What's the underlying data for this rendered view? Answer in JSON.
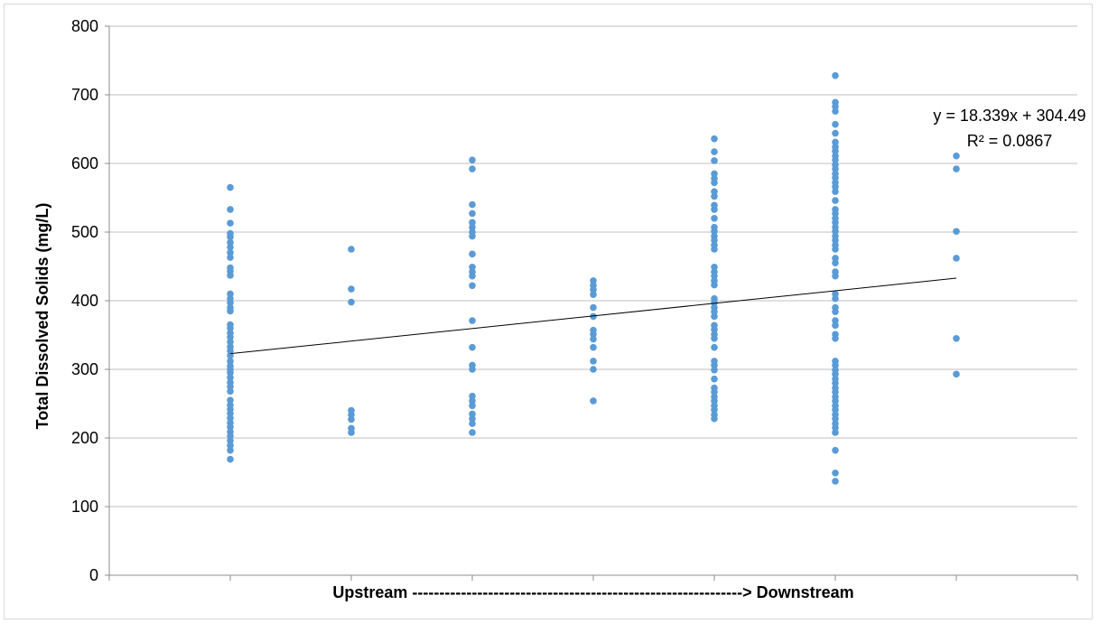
{
  "chart_data": {
    "type": "scatter",
    "title": "",
    "xlabel": "Upstream -------------------------------------------------------------> Downstream",
    "ylabel": "Total Dissolved Solids (mg/L)",
    "xlim": [
      0,
      8
    ],
    "ylim": [
      0,
      800
    ],
    "yticks": [
      0,
      100,
      200,
      300,
      400,
      500,
      600,
      700,
      800
    ],
    "grid": true,
    "legend": "none",
    "series": [
      {
        "marker_color": "#5b9bd5",
        "points": [
          {
            "x": 1,
            "y": 565
          },
          {
            "x": 1,
            "y": 533
          },
          {
            "x": 1,
            "y": 513
          },
          {
            "x": 1,
            "y": 498
          },
          {
            "x": 1,
            "y": 493
          },
          {
            "x": 1,
            "y": 485
          },
          {
            "x": 1,
            "y": 478
          },
          {
            "x": 1,
            "y": 470
          },
          {
            "x": 1,
            "y": 463
          },
          {
            "x": 1,
            "y": 448
          },
          {
            "x": 1,
            "y": 443
          },
          {
            "x": 1,
            "y": 437
          },
          {
            "x": 1,
            "y": 410
          },
          {
            "x": 1,
            "y": 403
          },
          {
            "x": 1,
            "y": 397
          },
          {
            "x": 1,
            "y": 390
          },
          {
            "x": 1,
            "y": 385
          },
          {
            "x": 1,
            "y": 365
          },
          {
            "x": 1,
            "y": 360
          },
          {
            "x": 1,
            "y": 353
          },
          {
            "x": 1,
            "y": 347
          },
          {
            "x": 1,
            "y": 340
          },
          {
            "x": 1,
            "y": 333
          },
          {
            "x": 1,
            "y": 327
          },
          {
            "x": 1,
            "y": 320
          },
          {
            "x": 1,
            "y": 312
          },
          {
            "x": 1,
            "y": 305
          },
          {
            "x": 1,
            "y": 300
          },
          {
            "x": 1,
            "y": 295
          },
          {
            "x": 1,
            "y": 288
          },
          {
            "x": 1,
            "y": 281
          },
          {
            "x": 1,
            "y": 275
          },
          {
            "x": 1,
            "y": 268
          },
          {
            "x": 1,
            "y": 255
          },
          {
            "x": 1,
            "y": 248
          },
          {
            "x": 1,
            "y": 242
          },
          {
            "x": 1,
            "y": 236
          },
          {
            "x": 1,
            "y": 229
          },
          {
            "x": 1,
            "y": 222
          },
          {
            "x": 1,
            "y": 216
          },
          {
            "x": 1,
            "y": 209
          },
          {
            "x": 1,
            "y": 203
          },
          {
            "x": 1,
            "y": 196
          },
          {
            "x": 1,
            "y": 189
          },
          {
            "x": 1,
            "y": 182
          },
          {
            "x": 1,
            "y": 169
          },
          {
            "x": 2,
            "y": 475
          },
          {
            "x": 2,
            "y": 417
          },
          {
            "x": 2,
            "y": 398
          },
          {
            "x": 2,
            "y": 240
          },
          {
            "x": 2,
            "y": 234
          },
          {
            "x": 2,
            "y": 227
          },
          {
            "x": 2,
            "y": 214
          },
          {
            "x": 2,
            "y": 208
          },
          {
            "x": 3,
            "y": 605
          },
          {
            "x": 3,
            "y": 592
          },
          {
            "x": 3,
            "y": 540
          },
          {
            "x": 3,
            "y": 527
          },
          {
            "x": 3,
            "y": 514
          },
          {
            "x": 3,
            "y": 507
          },
          {
            "x": 3,
            "y": 500
          },
          {
            "x": 3,
            "y": 494
          },
          {
            "x": 3,
            "y": 468
          },
          {
            "x": 3,
            "y": 449
          },
          {
            "x": 3,
            "y": 442
          },
          {
            "x": 3,
            "y": 436
          },
          {
            "x": 3,
            "y": 422
          },
          {
            "x": 3,
            "y": 371
          },
          {
            "x": 3,
            "y": 332
          },
          {
            "x": 3,
            "y": 306
          },
          {
            "x": 3,
            "y": 300
          },
          {
            "x": 3,
            "y": 261
          },
          {
            "x": 3,
            "y": 254
          },
          {
            "x": 3,
            "y": 247
          },
          {
            "x": 3,
            "y": 235
          },
          {
            "x": 3,
            "y": 228
          },
          {
            "x": 3,
            "y": 221
          },
          {
            "x": 3,
            "y": 208
          },
          {
            "x": 4,
            "y": 429
          },
          {
            "x": 4,
            "y": 422
          },
          {
            "x": 4,
            "y": 416
          },
          {
            "x": 4,
            "y": 409
          },
          {
            "x": 4,
            "y": 390
          },
          {
            "x": 4,
            "y": 377
          },
          {
            "x": 4,
            "y": 357
          },
          {
            "x": 4,
            "y": 351
          },
          {
            "x": 4,
            "y": 344
          },
          {
            "x": 4,
            "y": 332
          },
          {
            "x": 4,
            "y": 312
          },
          {
            "x": 4,
            "y": 300
          },
          {
            "x": 4,
            "y": 254
          },
          {
            "x": 5,
            "y": 636
          },
          {
            "x": 5,
            "y": 617
          },
          {
            "x": 5,
            "y": 604
          },
          {
            "x": 5,
            "y": 585
          },
          {
            "x": 5,
            "y": 578
          },
          {
            "x": 5,
            "y": 572
          },
          {
            "x": 5,
            "y": 559
          },
          {
            "x": 5,
            "y": 552
          },
          {
            "x": 5,
            "y": 539
          },
          {
            "x": 5,
            "y": 533
          },
          {
            "x": 5,
            "y": 520
          },
          {
            "x": 5,
            "y": 507
          },
          {
            "x": 5,
            "y": 501
          },
          {
            "x": 5,
            "y": 494
          },
          {
            "x": 5,
            "y": 488
          },
          {
            "x": 5,
            "y": 481
          },
          {
            "x": 5,
            "y": 475
          },
          {
            "x": 5,
            "y": 449
          },
          {
            "x": 5,
            "y": 442
          },
          {
            "x": 5,
            "y": 436
          },
          {
            "x": 5,
            "y": 429
          },
          {
            "x": 5,
            "y": 423
          },
          {
            "x": 5,
            "y": 403
          },
          {
            "x": 5,
            "y": 397
          },
          {
            "x": 5,
            "y": 390
          },
          {
            "x": 5,
            "y": 384
          },
          {
            "x": 5,
            "y": 377
          },
          {
            "x": 5,
            "y": 364
          },
          {
            "x": 5,
            "y": 358
          },
          {
            "x": 5,
            "y": 351
          },
          {
            "x": 5,
            "y": 345
          },
          {
            "x": 5,
            "y": 332
          },
          {
            "x": 5,
            "y": 312
          },
          {
            "x": 5,
            "y": 306
          },
          {
            "x": 5,
            "y": 299
          },
          {
            "x": 5,
            "y": 286
          },
          {
            "x": 5,
            "y": 273
          },
          {
            "x": 5,
            "y": 267
          },
          {
            "x": 5,
            "y": 260
          },
          {
            "x": 5,
            "y": 254
          },
          {
            "x": 5,
            "y": 247
          },
          {
            "x": 5,
            "y": 241
          },
          {
            "x": 5,
            "y": 234
          },
          {
            "x": 5,
            "y": 228
          },
          {
            "x": 6,
            "y": 728
          },
          {
            "x": 6,
            "y": 689
          },
          {
            "x": 6,
            "y": 683
          },
          {
            "x": 6,
            "y": 676
          },
          {
            "x": 6,
            "y": 657
          },
          {
            "x": 6,
            "y": 644
          },
          {
            "x": 6,
            "y": 631
          },
          {
            "x": 6,
            "y": 624
          },
          {
            "x": 6,
            "y": 618
          },
          {
            "x": 6,
            "y": 611
          },
          {
            "x": 6,
            "y": 605
          },
          {
            "x": 6,
            "y": 598
          },
          {
            "x": 6,
            "y": 592
          },
          {
            "x": 6,
            "y": 585
          },
          {
            "x": 6,
            "y": 579
          },
          {
            "x": 6,
            "y": 572
          },
          {
            "x": 6,
            "y": 566
          },
          {
            "x": 6,
            "y": 559
          },
          {
            "x": 6,
            "y": 546
          },
          {
            "x": 6,
            "y": 533
          },
          {
            "x": 6,
            "y": 527
          },
          {
            "x": 6,
            "y": 520
          },
          {
            "x": 6,
            "y": 514
          },
          {
            "x": 6,
            "y": 507
          },
          {
            "x": 6,
            "y": 501
          },
          {
            "x": 6,
            "y": 494
          },
          {
            "x": 6,
            "y": 488
          },
          {
            "x": 6,
            "y": 481
          },
          {
            "x": 6,
            "y": 475
          },
          {
            "x": 6,
            "y": 462
          },
          {
            "x": 6,
            "y": 455
          },
          {
            "x": 6,
            "y": 442
          },
          {
            "x": 6,
            "y": 436
          },
          {
            "x": 6,
            "y": 410
          },
          {
            "x": 6,
            "y": 403
          },
          {
            "x": 6,
            "y": 390
          },
          {
            "x": 6,
            "y": 384
          },
          {
            "x": 6,
            "y": 371
          },
          {
            "x": 6,
            "y": 364
          },
          {
            "x": 6,
            "y": 351
          },
          {
            "x": 6,
            "y": 345
          },
          {
            "x": 6,
            "y": 312
          },
          {
            "x": 6,
            "y": 306
          },
          {
            "x": 6,
            "y": 299
          },
          {
            "x": 6,
            "y": 293
          },
          {
            "x": 6,
            "y": 286
          },
          {
            "x": 6,
            "y": 280
          },
          {
            "x": 6,
            "y": 273
          },
          {
            "x": 6,
            "y": 267
          },
          {
            "x": 6,
            "y": 260
          },
          {
            "x": 6,
            "y": 254
          },
          {
            "x": 6,
            "y": 247
          },
          {
            "x": 6,
            "y": 241
          },
          {
            "x": 6,
            "y": 234
          },
          {
            "x": 6,
            "y": 228
          },
          {
            "x": 6,
            "y": 221
          },
          {
            "x": 6,
            "y": 215
          },
          {
            "x": 6,
            "y": 208
          },
          {
            "x": 6,
            "y": 182
          },
          {
            "x": 6,
            "y": 149
          },
          {
            "x": 6,
            "y": 137
          },
          {
            "x": 7,
            "y": 611
          },
          {
            "x": 7,
            "y": 592
          },
          {
            "x": 7,
            "y": 501
          },
          {
            "x": 7,
            "y": 462
          },
          {
            "x": 7,
            "y": 345
          },
          {
            "x": 7,
            "y": 293
          }
        ]
      }
    ],
    "trendline": {
      "type": "linear",
      "slope": 18.339,
      "intercept": 304.49,
      "x_start": 1,
      "x_end": 7,
      "color": "#000000",
      "equation_text": "y = 18.339x + 304.49",
      "r2_text": "R² = 0.0867"
    }
  }
}
